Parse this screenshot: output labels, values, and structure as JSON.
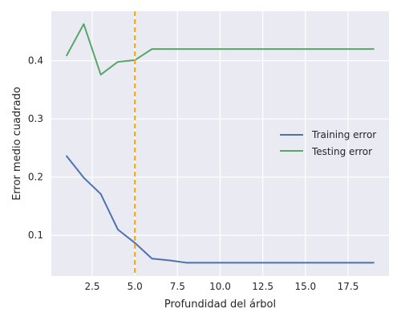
{
  "chart_data": {
    "type": "line",
    "title": "",
    "xlabel": "Profundidad del árbol",
    "ylabel": "Error medio cuadrado",
    "xlim": [
      0.1,
      19.9
    ],
    "ylim": [
      0.03,
      0.485
    ],
    "xticks": [
      2.5,
      5.0,
      7.5,
      10.0,
      12.5,
      15.0,
      17.5
    ],
    "xtick_labels": [
      "2.5",
      "5.0",
      "7.5",
      "10.0",
      "12.5",
      "15.0",
      "17.5"
    ],
    "yticks": [
      0.1,
      0.2,
      0.3,
      0.4
    ],
    "ytick_labels": [
      "0.1",
      "0.2",
      "0.3",
      "0.4"
    ],
    "grid": true,
    "legend_position": "center-right",
    "vline": {
      "x": 5,
      "color": "#FFA500",
      "style": "dashed"
    },
    "series": [
      {
        "name": "Training error",
        "color": "#4C72B0",
        "x": [
          1,
          2,
          3,
          4,
          5,
          6,
          7,
          8,
          9,
          10,
          11,
          12,
          13,
          14,
          15,
          16,
          17,
          18,
          19
        ],
        "values": [
          0.236,
          0.199,
          0.171,
          0.11,
          0.087,
          0.06,
          0.057,
          0.053,
          0.053,
          0.053,
          0.053,
          0.053,
          0.053,
          0.053,
          0.053,
          0.053,
          0.053,
          0.053,
          0.053
        ]
      },
      {
        "name": "Testing error",
        "color": "#55A868",
        "x": [
          1,
          2,
          3,
          4,
          5,
          6,
          7,
          8,
          9,
          10,
          11,
          12,
          13,
          14,
          15,
          16,
          17,
          18,
          19
        ],
        "values": [
          0.409,
          0.463,
          0.376,
          0.398,
          0.401,
          0.42,
          0.42,
          0.42,
          0.42,
          0.42,
          0.42,
          0.42,
          0.42,
          0.42,
          0.42,
          0.42,
          0.42,
          0.42,
          0.42
        ]
      }
    ]
  }
}
